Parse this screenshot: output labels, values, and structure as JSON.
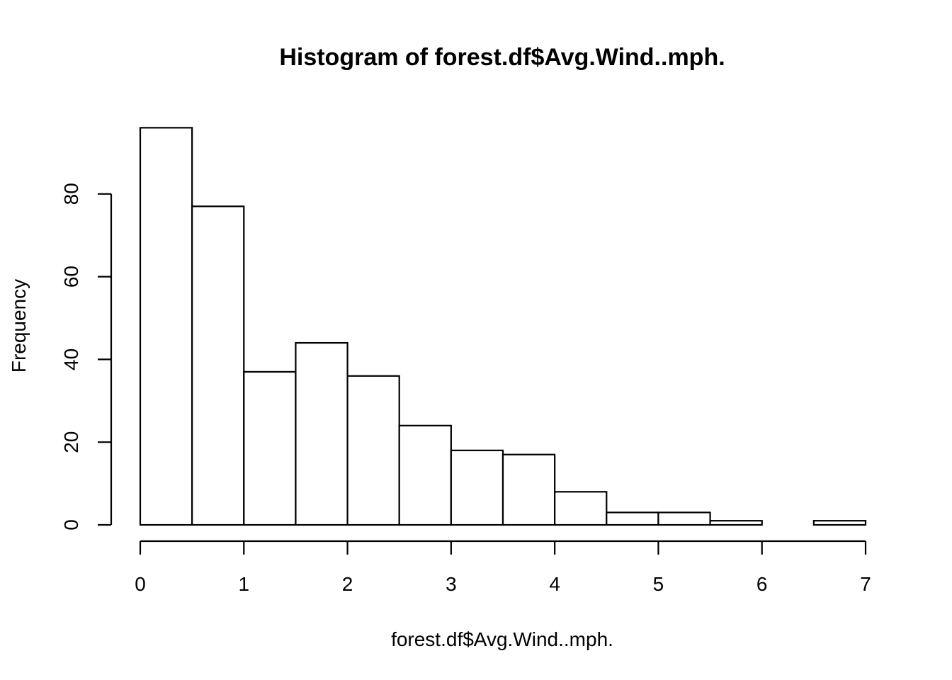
{
  "chart_data": {
    "type": "bar",
    "title": "Histogram of forest.df$Avg.Wind..mph.",
    "xlabel": "forest.df$Avg.Wind..mph.",
    "ylabel": "Frequency",
    "bins": [
      {
        "from": 0.0,
        "to": 0.5,
        "count": 96
      },
      {
        "from": 0.5,
        "to": 1.0,
        "count": 77
      },
      {
        "from": 1.0,
        "to": 1.5,
        "count": 37
      },
      {
        "from": 1.5,
        "to": 2.0,
        "count": 44
      },
      {
        "from": 2.0,
        "to": 2.5,
        "count": 36
      },
      {
        "from": 2.5,
        "to": 3.0,
        "count": 24
      },
      {
        "from": 3.0,
        "to": 3.5,
        "count": 18
      },
      {
        "from": 3.5,
        "to": 4.0,
        "count": 17
      },
      {
        "from": 4.0,
        "to": 4.5,
        "count": 8
      },
      {
        "from": 4.5,
        "to": 5.0,
        "count": 3
      },
      {
        "from": 5.0,
        "to": 5.5,
        "count": 3
      },
      {
        "from": 5.5,
        "to": 6.0,
        "count": 1
      },
      {
        "from": 6.0,
        "to": 6.5,
        "count": 0
      },
      {
        "from": 6.5,
        "to": 7.0,
        "count": 1
      }
    ],
    "x_ticks": [
      "0",
      "1",
      "2",
      "3",
      "4",
      "5",
      "6",
      "7"
    ],
    "y_ticks": [
      "0",
      "20",
      "40",
      "60",
      "80"
    ],
    "xlim": [
      0,
      7
    ],
    "ylim": [
      0,
      96
    ],
    "grid": false
  }
}
